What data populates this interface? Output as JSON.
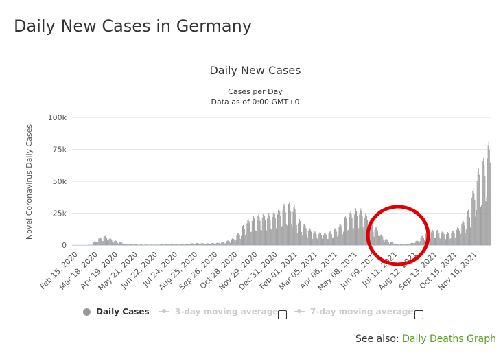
{
  "page": {
    "title": "Daily New Cases in Germany",
    "see_also_prefix": "See also:",
    "see_also_link": "Daily Deaths Graph"
  },
  "legend": {
    "items": [
      {
        "label": "Daily Cases",
        "color": "#999999",
        "active": true
      },
      {
        "label": "3-day moving average",
        "color": "#cccccc",
        "active": false
      },
      {
        "label": "7-day moving average",
        "color": "#cccccc",
        "active": false
      }
    ]
  },
  "chart_data": {
    "type": "bar",
    "title": "Daily New Cases",
    "subtitle_lines": [
      "Cases per Day",
      "Data as of 0:00 GMT+0"
    ],
    "ylabel": "Novel Coronavirus Daily Cases",
    "xlabel": "",
    "ylim": [
      0,
      100000
    ],
    "y_ticks": [
      "0",
      "25k",
      "50k",
      "75k",
      "100k"
    ],
    "x_tick_labels": [
      "Feb 15, 2020",
      "Mar 18, 2020",
      "Apr 19, 2020",
      "May 21, 2020",
      "Jun 22, 2020",
      "Jul 24, 2020",
      "Aug 25, 2020",
      "Sep 26, 2020",
      "Oct 28, 2020",
      "Nov 29, 2020",
      "Dec 31, 2020",
      "Feb 01, 2021",
      "Mar 05, 2021",
      "Apr 06, 2021",
      "May 08, 2021",
      "Jun 09, 2021",
      "Jul 11, 2021",
      "Aug 12, 2021",
      "Sep 13, 2021",
      "Oct 15, 2021",
      "Nov 16, 2021"
    ],
    "bar_color": "#999999",
    "grid": true,
    "series": [
      {
        "name": "Daily Cases",
        "x_start": "Feb 15, 2020",
        "x_end": "Nov 24, 2021",
        "weekly_values": [
          0,
          0,
          0,
          200,
          2500,
          5000,
          6000,
          4500,
          3000,
          2000,
          1000,
          700,
          500,
          400,
          350,
          300,
          350,
          500,
          700,
          600,
          500,
          600,
          800,
          1200,
          1400,
          1300,
          1200,
          1400,
          1600,
          2000,
          3000,
          4500,
          8000,
          13000,
          17000,
          19000,
          20000,
          21000,
          21000,
          22000,
          24000,
          27000,
          28000,
          26000,
          17000,
          14000,
          11000,
          9000,
          8500,
          8000,
          9000,
          11000,
          14000,
          19000,
          22000,
          24000,
          24000,
          21000,
          17000,
          12000,
          7000,
          4000,
          2000,
          1000,
          600,
          800,
          1500,
          3000,
          6000,
          9000,
          10000,
          10000,
          9000,
          8500,
          9500,
          12000,
          16000,
          23000,
          37000,
          50000,
          57000,
          68000
        ]
      }
    ],
    "annotations": [
      {
        "type": "circle",
        "stroke": "#e00000",
        "around": "Jun 09, 2021 - Aug 12, 2021"
      }
    ]
  }
}
